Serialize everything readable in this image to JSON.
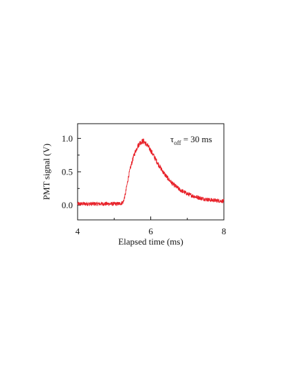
{
  "chart_data": {
    "type": "line",
    "xlabel": "Elapsed time (ms)",
    "ylabel": "PMT signal (V)",
    "xlim": [
      4,
      8
    ],
    "ylim": [
      -0.22,
      1.22
    ],
    "xticks": [
      4,
      6,
      8
    ],
    "xtick_labels": [
      "4",
      "6",
      "8"
    ],
    "yticks": [
      0.0,
      0.5,
      1.0
    ],
    "ytick_labels": [
      "0.0",
      "0.5",
      "1.0"
    ],
    "grid": false,
    "colors": {
      "trace": "#e8222a",
      "axis": "#111111"
    },
    "annotation": {
      "symbol": "τ",
      "subscript": "off",
      "rest": " = 30 ms"
    },
    "series": [
      {
        "color": "#e8222a",
        "x": [
          4.0,
          4.2,
          4.4,
          4.6,
          4.8,
          5.0,
          5.1,
          5.2,
          5.25,
          5.3,
          5.35,
          5.4,
          5.45,
          5.5,
          5.55,
          5.6,
          5.65,
          5.7,
          5.75,
          5.8,
          5.85,
          5.9,
          5.95,
          6.0,
          6.1,
          6.2,
          6.3,
          6.4,
          6.5,
          6.6,
          6.8,
          7.0,
          7.2,
          7.4,
          7.6,
          7.8,
          8.0
        ],
        "y": [
          0.02,
          0.02,
          0.02,
          0.02,
          0.02,
          0.02,
          0.02,
          0.03,
          0.05,
          0.15,
          0.3,
          0.45,
          0.57,
          0.67,
          0.76,
          0.83,
          0.89,
          0.93,
          0.95,
          0.96,
          0.93,
          0.9,
          0.86,
          0.82,
          0.72,
          0.62,
          0.53,
          0.45,
          0.38,
          0.32,
          0.23,
          0.17,
          0.13,
          0.1,
          0.08,
          0.07,
          0.06
        ]
      }
    ]
  }
}
